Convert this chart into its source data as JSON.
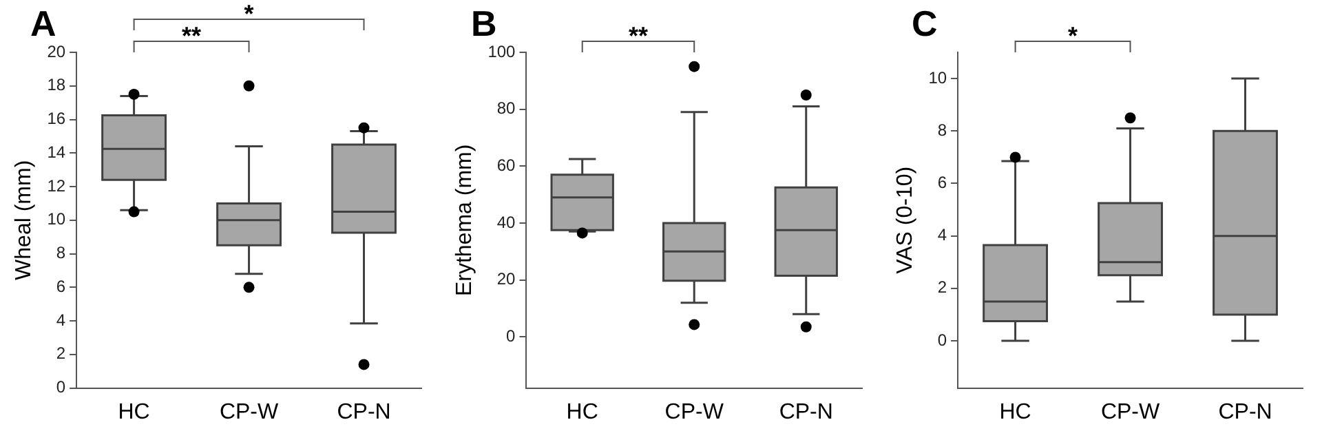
{
  "chart_data": [
    {
      "type": "box",
      "title": "A",
      "ylabel": "Wheal (mm)",
      "categories": [
        "HC",
        "CP-W",
        "CP-N"
      ],
      "ylim": [
        0,
        20
      ],
      "yticks": [
        0,
        2,
        4,
        6,
        8,
        10,
        12,
        14,
        16,
        18,
        20
      ],
      "annotations": [
        "**",
        "*"
      ],
      "series": [
        {
          "color": "#a6a6a6",
          "boxes": [
            {
              "low": 10.6,
              "q1": 12.4,
              "median": 14.25,
              "q3": 16.25,
              "high": 17.4,
              "outliers": [
                10.5,
                17.5
              ]
            },
            {
              "low": 6.8,
              "q1": 8.5,
              "median": 10,
              "q3": 11,
              "high": 14.4,
              "outliers": [
                6,
                18
              ]
            },
            {
              "low": 3.85,
              "q1": 9.25,
              "median": 10.5,
              "q3": 14.5,
              "high": 15.3,
              "outliers": [
                1.4,
                15.5
              ]
            }
          ]
        }
      ]
    },
    {
      "type": "box",
      "title": "B",
      "ylabel": "Erythema (mm)",
      "categories": [
        "HC",
        "CP-W",
        "CP-N"
      ],
      "ylim": [
        -18,
        100
      ],
      "yticks": [
        0,
        20,
        40,
        60,
        80,
        100
      ],
      "annotations": [
        "**"
      ],
      "series": [
        {
          "color": "#a6a6a6",
          "boxes": [
            {
              "low": 37,
              "q1": 37.5,
              "median": 49,
              "q3": 57,
              "high": 62.5,
              "outliers": [
                36.5
              ]
            },
            {
              "low": 12,
              "q1": 19.7,
              "median": 30,
              "q3": 40,
              "high": 79,
              "outliers": [
                4.3,
                95
              ]
            },
            {
              "low": 8,
              "q1": 21.5,
              "median": 37.5,
              "q3": 52.5,
              "high": 81,
              "outliers": [
                3.5,
                85
              ]
            }
          ]
        }
      ]
    },
    {
      "type": "box",
      "title": "C",
      "ylabel": "VAS (0-10)",
      "categories": [
        "HC",
        "CP-W",
        "CP-N"
      ],
      "ylim": [
        -1.8,
        11
      ],
      "yticks": [
        0,
        2,
        4,
        6,
        8,
        10
      ],
      "annotations": [
        "*"
      ],
      "series": [
        {
          "color": "#a6a6a6",
          "boxes": [
            {
              "low": 0,
              "q1": 0.75,
              "median": 1.5,
              "q3": 3.65,
              "high": 6.85,
              "outliers": [
                7
              ]
            },
            {
              "low": 1.5,
              "q1": 2.5,
              "median": 3,
              "q3": 5.25,
              "high": 8.1,
              "outliers": [
                8.5
              ]
            },
            {
              "low": 0,
              "q1": 1,
              "median": 4,
              "q3": 8,
              "high": 10
            }
          ]
        }
      ]
    }
  ]
}
